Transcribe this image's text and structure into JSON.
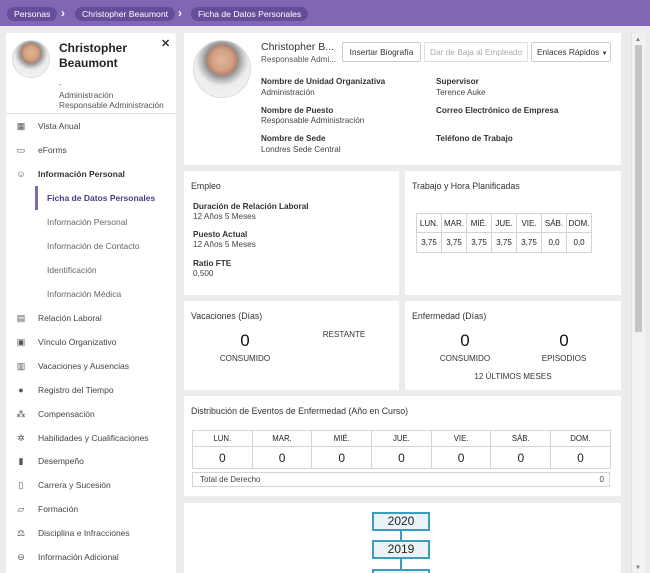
{
  "breadcrumb": [
    "Personas",
    "Christopher Beaumont",
    "Ficha de Datos Personales"
  ],
  "sidebar": {
    "name": "Christopher Beaumont",
    "dash": "-",
    "department": "Administración",
    "position": "Responsable Administración",
    "items": [
      {
        "label": "Vista Anual",
        "icon": "calendar-icon",
        "glyph": "▦"
      },
      {
        "label": "eForms",
        "icon": "document-icon",
        "glyph": "▭"
      },
      {
        "label": "Información Personal",
        "icon": "person-icon",
        "glyph": "☺"
      },
      {
        "label": "Relación Laboral",
        "icon": "briefcase-icon",
        "glyph": "▤"
      },
      {
        "label": "Vínculo Organizativo",
        "icon": "org-icon",
        "glyph": "▣"
      },
      {
        "label": "Vacaciones y Ausencias",
        "icon": "case-icon",
        "glyph": "▥"
      },
      {
        "label": "Registro del Tiempo",
        "icon": "clock-icon",
        "glyph": "●"
      },
      {
        "label": "Compensación",
        "icon": "coins-icon",
        "glyph": "⁂"
      },
      {
        "label": "Habilidades y Cualificaciones",
        "icon": "skills-icon",
        "glyph": "✲"
      },
      {
        "label": "Desempeño",
        "icon": "performance-icon",
        "glyph": "▮"
      },
      {
        "label": "Carrera y Sucesión",
        "icon": "career-icon",
        "glyph": "▯"
      },
      {
        "label": "Formación",
        "icon": "book-icon",
        "glyph": "▱"
      },
      {
        "label": "Disciplina e Infracciones",
        "icon": "scales-icon",
        "glyph": "⚖"
      },
      {
        "label": "Información Adicional",
        "icon": "info-icon",
        "glyph": "⊖"
      }
    ],
    "subitems": [
      "Ficha de Datos Personales",
      "Información Personal",
      "Información de Contacto",
      "Identificación",
      "Información Médica"
    ]
  },
  "profile": {
    "name": "Christopher B...",
    "title": "Responsable Admi...",
    "btn_biography": "Insertar Biografía",
    "btn_terminate": "Dar de Baja al Empleado",
    "btn_quicklinks": "Enlaces Rápidos",
    "org_unit_label": "Nombre de Unidad Organizativa",
    "org_unit_value": "Administración",
    "position_label": "Nombre de Puesto",
    "position_value": "Responsable Administración",
    "site_label": "Nombre de Sede",
    "site_value": "Londres Sede Central",
    "supervisor_label": "Supervisor",
    "supervisor_value": "Terence Auke",
    "email_label": "Correo Electrónico de Empresa",
    "phone_label": "Teléfono de Trabajo"
  },
  "employment": {
    "title": "Empleo",
    "duration_label": "Duración de Relación Laboral",
    "duration_value": "12 Años 5 Meses",
    "current_label": "Puesto Actual",
    "current_value": "12 Años 5 Meses",
    "fte_label": "Ratio FTE",
    "fte_value": "0,500"
  },
  "work": {
    "title": "Trabajo y Hora Planificadas",
    "days": [
      "LUN.",
      "MAR.",
      "MIÉ.",
      "JUE.",
      "VIE.",
      "SÁB.",
      "DOM."
    ],
    "hours": [
      "3,75",
      "3,75",
      "3,75",
      "3,75",
      "3,75",
      "0,0",
      "0,0"
    ]
  },
  "vacation": {
    "title": "Vacaciones (Días)",
    "consumed_value": "0",
    "consumed_label": "CONSUMIDO",
    "remaining_label": "RESTANTE"
  },
  "sickness": {
    "title": "Enfermedad (Días)",
    "consumed_value": "0",
    "consumed_label": "CONSUMIDO",
    "episodes_value": "0",
    "episodes_label": "EPISODIOS",
    "period": "12 ÚLTIMOS MESES"
  },
  "distribution": {
    "title": "Distribución de Eventos de Enfermedad (Año en Curso)",
    "days": [
      "LUN.",
      "MAR.",
      "MIÉ.",
      "JUE.",
      "VIE.",
      "SÁB.",
      "DOM."
    ],
    "values": [
      "0",
      "0",
      "0",
      "0",
      "0",
      "0",
      "0"
    ],
    "total_label": "Total de Derecho",
    "total_value": "0"
  },
  "timeline": {
    "years": [
      "2020",
      "2019"
    ]
  }
}
